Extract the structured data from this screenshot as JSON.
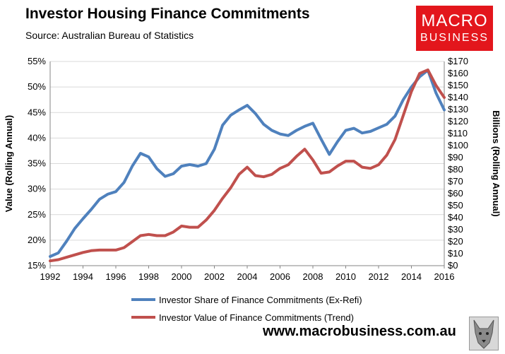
{
  "header": {
    "title": "Investor Housing Finance Commitments",
    "subtitle": "Source: Australian Bureau of Statistics"
  },
  "logo": {
    "line1": "MACRO",
    "line2": "BUSINESS"
  },
  "footer": {
    "url": "www.macrobusiness.com.au"
  },
  "colors": {
    "share": "#4f81bd",
    "value": "#c0504d",
    "grid": "#d9d9d9",
    "logo_bg": "#e3161c"
  },
  "icons": {
    "wolf": "wolf-icon"
  },
  "chart_data": {
    "type": "line",
    "x_ticks": [
      "1992",
      "1994",
      "1996",
      "1998",
      "2000",
      "2002",
      "2004",
      "2006",
      "2008",
      "2010",
      "2012",
      "2014",
      "2016"
    ],
    "xlim": [
      1992,
      2016
    ],
    "ylabel_left": "Value (Rolling Annual)",
    "ylabel_right": "Billions (Rolling Annual)",
    "ylim_left": [
      15,
      55
    ],
    "ylim_right": [
      0,
      170
    ],
    "y_ticks_left": [
      "15%",
      "20%",
      "25%",
      "30%",
      "35%",
      "40%",
      "45%",
      "50%",
      "55%"
    ],
    "y_ticks_right": [
      "$0",
      "$10",
      "$20",
      "$30",
      "$40",
      "$50",
      "$60",
      "$70",
      "$80",
      "$90",
      "$100",
      "$110",
      "$120",
      "$130",
      "$140",
      "$150",
      "$160",
      "$170"
    ],
    "grid": "horizontal",
    "legend_position": "bottom",
    "series": [
      {
        "name": "Investor Share of Finance Commitments (Ex-Refi)",
        "axis": "left",
        "x": [
          1992.0,
          1992.5,
          1993.0,
          1993.5,
          1994.0,
          1994.5,
          1995.0,
          1995.5,
          1996.0,
          1996.5,
          1997.0,
          1997.5,
          1998.0,
          1998.5,
          1999.0,
          1999.5,
          2000.0,
          2000.5,
          2001.0,
          2001.5,
          2002.0,
          2002.5,
          2003.0,
          2003.5,
          2004.0,
          2004.5,
          2005.0,
          2005.5,
          2006.0,
          2006.5,
          2007.0,
          2007.5,
          2008.0,
          2008.5,
          2009.0,
          2009.5,
          2010.0,
          2010.5,
          2011.0,
          2011.5,
          2012.0,
          2012.5,
          2013.0,
          2013.5,
          2014.0,
          2014.5,
          2015.0,
          2015.5,
          2016.0
        ],
        "y": [
          16.8,
          17.5,
          19.8,
          22.3,
          24.2,
          26.0,
          28.0,
          29.0,
          29.5,
          31.3,
          34.5,
          37.0,
          36.3,
          34.0,
          32.5,
          33.0,
          34.5,
          34.8,
          34.5,
          35.0,
          37.8,
          42.5,
          44.5,
          45.5,
          46.4,
          44.8,
          42.7,
          41.5,
          40.8,
          40.5,
          41.5,
          42.3,
          42.9,
          39.8,
          36.8,
          39.3,
          41.5,
          41.9,
          41.0,
          41.3,
          42.0,
          42.7,
          44.3,
          47.5,
          50.0,
          52.0,
          53.3,
          48.8,
          45.5
        ]
      },
      {
        "name": "Investor Value of Finance Commitments (Trend)",
        "axis": "right",
        "x": [
          1992.0,
          1992.5,
          1993.0,
          1993.5,
          1994.0,
          1994.5,
          1995.0,
          1995.5,
          1996.0,
          1996.5,
          1997.0,
          1997.5,
          1998.0,
          1998.5,
          1999.0,
          1999.5,
          2000.0,
          2000.5,
          2001.0,
          2001.5,
          2002.0,
          2002.5,
          2003.0,
          2003.5,
          2004.0,
          2004.5,
          2005.0,
          2005.5,
          2006.0,
          2006.5,
          2007.0,
          2007.5,
          2008.0,
          2008.5,
          2009.0,
          2009.5,
          2010.0,
          2010.5,
          2011.0,
          2011.5,
          2012.0,
          2012.5,
          2013.0,
          2013.5,
          2014.0,
          2014.5,
          2015.0,
          2015.5,
          2016.0
        ],
        "y": [
          4,
          5,
          7,
          9,
          11,
          12.5,
          13,
          13,
          13,
          15,
          20,
          25,
          26,
          25,
          25,
          28,
          33,
          32,
          32,
          38,
          46,
          56,
          65,
          76,
          82,
          75,
          74,
          76,
          81,
          84,
          91,
          97,
          88,
          77,
          78,
          83,
          87,
          87,
          82,
          81,
          84,
          92,
          105,
          125,
          145,
          160,
          163,
          150,
          140
        ]
      }
    ]
  }
}
